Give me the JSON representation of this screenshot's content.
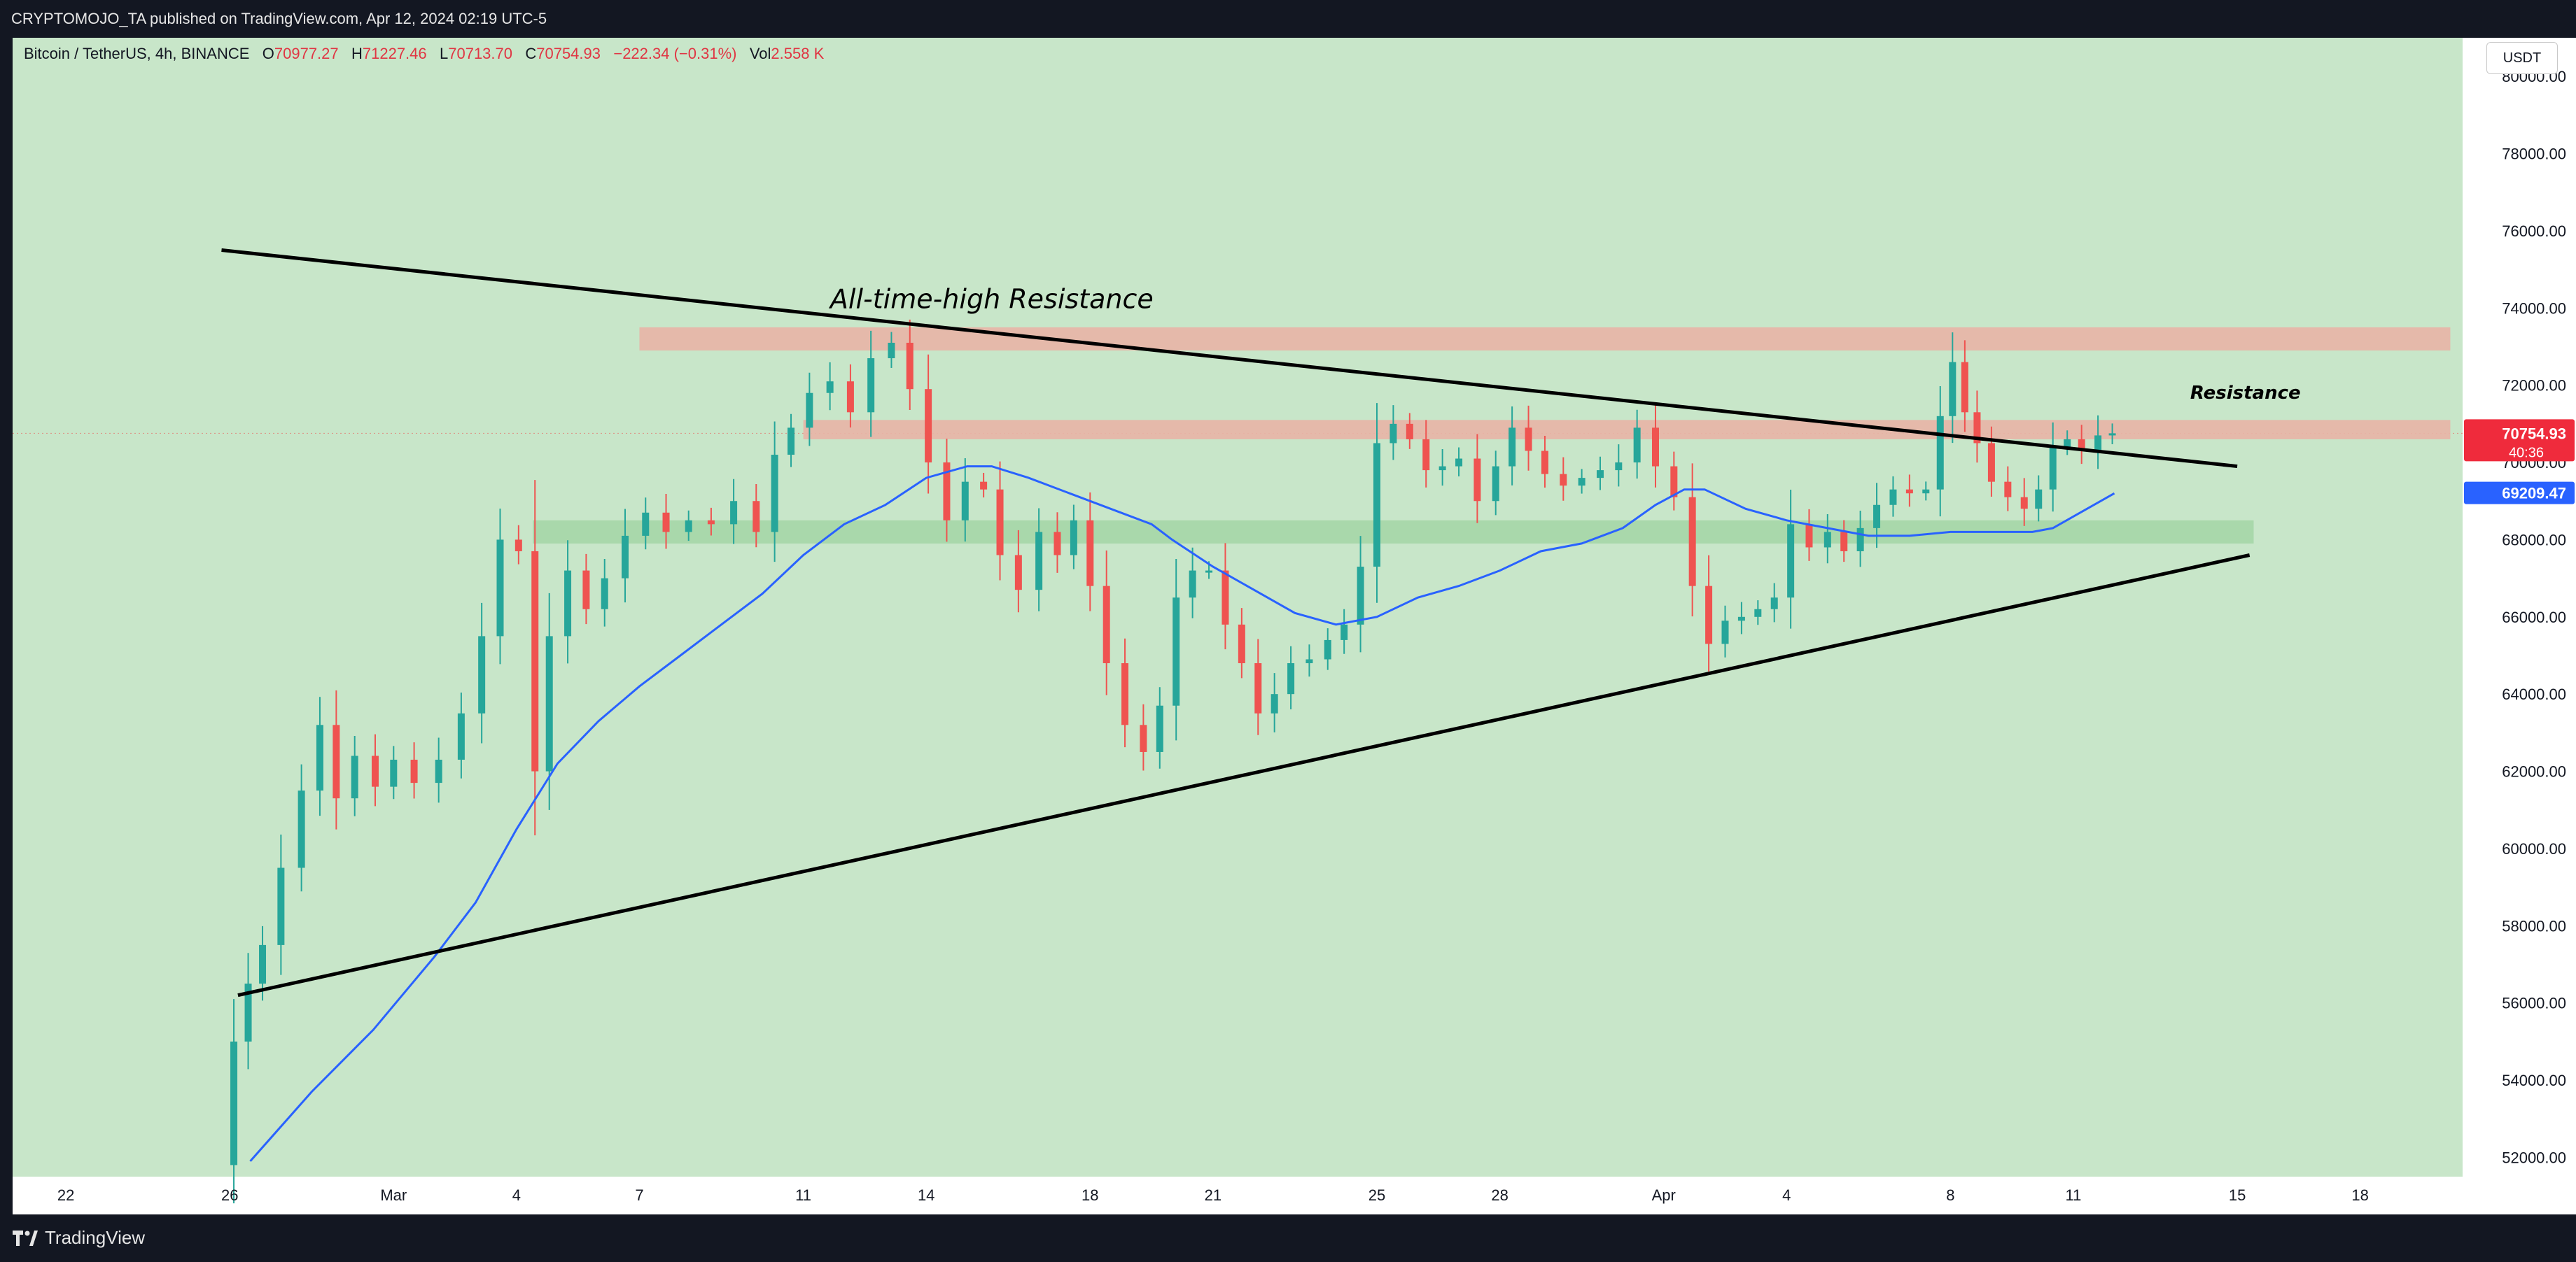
{
  "header": {
    "published": "CRYPTOMOJO_TA published on TradingView.com, Apr 12, 2024 02:19 UTC-5"
  },
  "legend": {
    "symbol": "Bitcoin / TetherUS, 4h, BINANCE",
    "o_label": "O",
    "o_val": "70977.27",
    "h_label": "H",
    "h_val": "71227.46",
    "l_label": "L",
    "l_val": "70713.70",
    "c_label": "C",
    "c_val": "70754.93",
    "change": "−222.34 (−0.31%)",
    "vol_label": "Vol",
    "vol_val": "2.558 K"
  },
  "currency_button": "USDT",
  "footer": {
    "brand": "TradingView"
  },
  "colors": {
    "plot_bg": "#c8e6c9",
    "up": "#26a69a",
    "down": "#ef5350",
    "ma": "#2962ff",
    "trend": "#000000",
    "resistance_zone": "#e8b4a6",
    "support_zone": "#a5d6a7"
  },
  "chart_data": {
    "type": "candlestick",
    "symbol": "BTC/USDT",
    "timeframe": "4h",
    "ylim": [
      51500,
      81000
    ],
    "y_ticks": [
      "80000.00",
      "78000.00",
      "76000.00",
      "74000.00",
      "72000.00",
      "70000.00",
      "68000.00",
      "66000.00",
      "64000.00",
      "62000.00",
      "60000.00",
      "58000.00",
      "56000.00",
      "54000.00",
      "52000.00"
    ],
    "x_ticks": [
      {
        "label": "22",
        "day": 0
      },
      {
        "label": "26",
        "day": 4
      },
      {
        "label": "Mar",
        "day": 8
      },
      {
        "label": "4",
        "day": 11
      },
      {
        "label": "7",
        "day": 14
      },
      {
        "label": "11",
        "day": 18
      },
      {
        "label": "14",
        "day": 21
      },
      {
        "label": "18",
        "day": 25
      },
      {
        "label": "21",
        "day": 28
      },
      {
        "label": "25",
        "day": 32
      },
      {
        "label": "28",
        "day": 35
      },
      {
        "label": "Apr",
        "day": 39
      },
      {
        "label": "4",
        "day": 42
      },
      {
        "label": "8",
        "day": 46
      },
      {
        "label": "11",
        "day": 49
      },
      {
        "label": "15",
        "day": 53
      },
      {
        "label": "18",
        "day": 56
      }
    ],
    "x_range_days": [
      -1.3,
      58.5
    ],
    "close_path": [
      [
        3.9,
        51800
      ],
      [
        4.3,
        55000
      ],
      [
        4.6,
        56500
      ],
      [
        5.0,
        57500
      ],
      [
        5.5,
        59500
      ],
      [
        6.0,
        61500
      ],
      [
        6.4,
        63200
      ],
      [
        6.8,
        61300
      ],
      [
        7.3,
        62400
      ],
      [
        7.8,
        61600
      ],
      [
        8.2,
        62300
      ],
      [
        8.8,
        61700
      ],
      [
        9.4,
        62300
      ],
      [
        9.9,
        63500
      ],
      [
        10.4,
        65500
      ],
      [
        10.8,
        68000
      ],
      [
        11.3,
        67700
      ],
      [
        11.6,
        62000
      ],
      [
        12.0,
        65500
      ],
      [
        12.5,
        67200
      ],
      [
        12.9,
        66200
      ],
      [
        13.4,
        67000
      ],
      [
        13.9,
        68100
      ],
      [
        14.4,
        68700
      ],
      [
        14.9,
        68200
      ],
      [
        15.5,
        68500
      ],
      [
        16.0,
        68400
      ],
      [
        16.6,
        69000
      ],
      [
        17.1,
        68200
      ],
      [
        17.5,
        70200
      ],
      [
        17.9,
        70900
      ],
      [
        18.4,
        71800
      ],
      [
        18.9,
        72100
      ],
      [
        19.4,
        71300
      ],
      [
        19.9,
        72700
      ],
      [
        20.4,
        73100
      ],
      [
        20.8,
        71900
      ],
      [
        21.3,
        70000
      ],
      [
        21.7,
        68500
      ],
      [
        22.2,
        69500
      ],
      [
        22.6,
        69300
      ],
      [
        23.0,
        67600
      ],
      [
        23.5,
        66700
      ],
      [
        24.0,
        68200
      ],
      [
        24.4,
        67600
      ],
      [
        24.8,
        68500
      ],
      [
        25.2,
        66800
      ],
      [
        25.6,
        64800
      ],
      [
        26.1,
        63200
      ],
      [
        26.5,
        62500
      ],
      [
        26.9,
        63700
      ],
      [
        27.3,
        66500
      ],
      [
        27.7,
        67200
      ],
      [
        28.1,
        67200
      ],
      [
        28.5,
        65800
      ],
      [
        28.9,
        64800
      ],
      [
        29.3,
        63500
      ],
      [
        29.7,
        64000
      ],
      [
        30.1,
        64800
      ],
      [
        30.6,
        64900
      ],
      [
        31.0,
        65400
      ],
      [
        31.4,
        65800
      ],
      [
        31.8,
        67300
      ],
      [
        32.2,
        70500
      ],
      [
        32.6,
        71000
      ],
      [
        33.0,
        70600
      ],
      [
        33.4,
        69800
      ],
      [
        33.8,
        69900
      ],
      [
        34.2,
        70100
      ],
      [
        34.7,
        69000
      ],
      [
        35.1,
        69900
      ],
      [
        35.5,
        70900
      ],
      [
        35.9,
        70300
      ],
      [
        36.3,
        69700
      ],
      [
        36.8,
        69400
      ],
      [
        37.2,
        69600
      ],
      [
        37.7,
        69800
      ],
      [
        38.1,
        70000
      ],
      [
        38.6,
        70900
      ],
      [
        39.0,
        69900
      ],
      [
        39.5,
        69100
      ],
      [
        39.9,
        66800
      ],
      [
        40.3,
        65300
      ],
      [
        40.7,
        65900
      ],
      [
        41.1,
        66000
      ],
      [
        41.5,
        66200
      ],
      [
        41.9,
        66500
      ],
      [
        42.3,
        68400
      ],
      [
        42.8,
        67800
      ],
      [
        43.2,
        68200
      ],
      [
        43.6,
        67700
      ],
      [
        44.0,
        68300
      ],
      [
        44.4,
        68900
      ],
      [
        44.8,
        69300
      ],
      [
        45.2,
        69200
      ],
      [
        45.6,
        69300
      ],
      [
        45.9,
        71200
      ],
      [
        46.2,
        72600
      ],
      [
        46.5,
        71300
      ],
      [
        46.8,
        70500
      ],
      [
        47.2,
        69500
      ],
      [
        47.6,
        69100
      ],
      [
        48.0,
        68800
      ],
      [
        48.3,
        69300
      ],
      [
        48.7,
        70400
      ],
      [
        49.0,
        70600
      ],
      [
        49.4,
        70300
      ],
      [
        49.8,
        70700
      ],
      [
        50.1,
        70755
      ]
    ],
    "moving_average": [
      [
        4.5,
        51900
      ],
      [
        6.0,
        53700
      ],
      [
        7.5,
        55300
      ],
      [
        9.0,
        57200
      ],
      [
        10.0,
        58600
      ],
      [
        11.0,
        60500
      ],
      [
        12.0,
        62200
      ],
      [
        13.0,
        63300
      ],
      [
        14.0,
        64200
      ],
      [
        15.0,
        65000
      ],
      [
        16.0,
        65800
      ],
      [
        17.0,
        66600
      ],
      [
        18.0,
        67600
      ],
      [
        19.0,
        68400
      ],
      [
        20.0,
        68900
      ],
      [
        21.0,
        69600
      ],
      [
        22.0,
        69900
      ],
      [
        22.6,
        69900
      ],
      [
        23.5,
        69600
      ],
      [
        24.5,
        69200
      ],
      [
        25.5,
        68800
      ],
      [
        26.5,
        68400
      ],
      [
        27.0,
        68000
      ],
      [
        28.0,
        67300
      ],
      [
        29.0,
        66700
      ],
      [
        30.0,
        66100
      ],
      [
        31.0,
        65800
      ],
      [
        32.0,
        66000
      ],
      [
        33.0,
        66500
      ],
      [
        34.0,
        66800
      ],
      [
        35.0,
        67200
      ],
      [
        36.0,
        67700
      ],
      [
        37.0,
        67900
      ],
      [
        38.0,
        68300
      ],
      [
        38.8,
        68900
      ],
      [
        39.5,
        69300
      ],
      [
        40.0,
        69300
      ],
      [
        41.0,
        68800
      ],
      [
        42.0,
        68500
      ],
      [
        43.0,
        68300
      ],
      [
        44.0,
        68100
      ],
      [
        45.0,
        68100
      ],
      [
        46.0,
        68200
      ],
      [
        47.0,
        68200
      ],
      [
        48.0,
        68200
      ],
      [
        48.5,
        68300
      ],
      [
        49.0,
        68600
      ],
      [
        50.0,
        69200
      ]
    ],
    "trendlines": [
      {
        "name": "descending-resistance",
        "from": [
          3.8,
          75500
        ],
        "to": [
          53.0,
          69900
        ]
      },
      {
        "name": "ascending-support",
        "from": [
          4.2,
          56200
        ],
        "to": [
          53.3,
          67600
        ]
      }
    ],
    "zones": [
      {
        "name": "ath-resistance-zone",
        "x0": 14.0,
        "x1": 58.2,
        "y0": 72900,
        "y1": 73500
      },
      {
        "name": "resistance-zone",
        "x0": 18.0,
        "x1": 58.2,
        "y0": 70600,
        "y1": 71100
      },
      {
        "name": "support-zone",
        "x0": 11.4,
        "x1": 53.4,
        "y0": 67900,
        "y1": 68500
      }
    ],
    "annotations": [
      {
        "name": "ath-label",
        "text": "All-time-high Resistance",
        "day": 22.6,
        "price": 74000
      },
      {
        "name": "resistance-label",
        "text": "Resistance",
        "day": 53.2,
        "price": 71650
      }
    ],
    "last_price": {
      "value": 70754.93,
      "label": "70754.93",
      "countdown": "40:36"
    },
    "ma_value": {
      "value": 69209.47,
      "label": "69209.47"
    }
  }
}
